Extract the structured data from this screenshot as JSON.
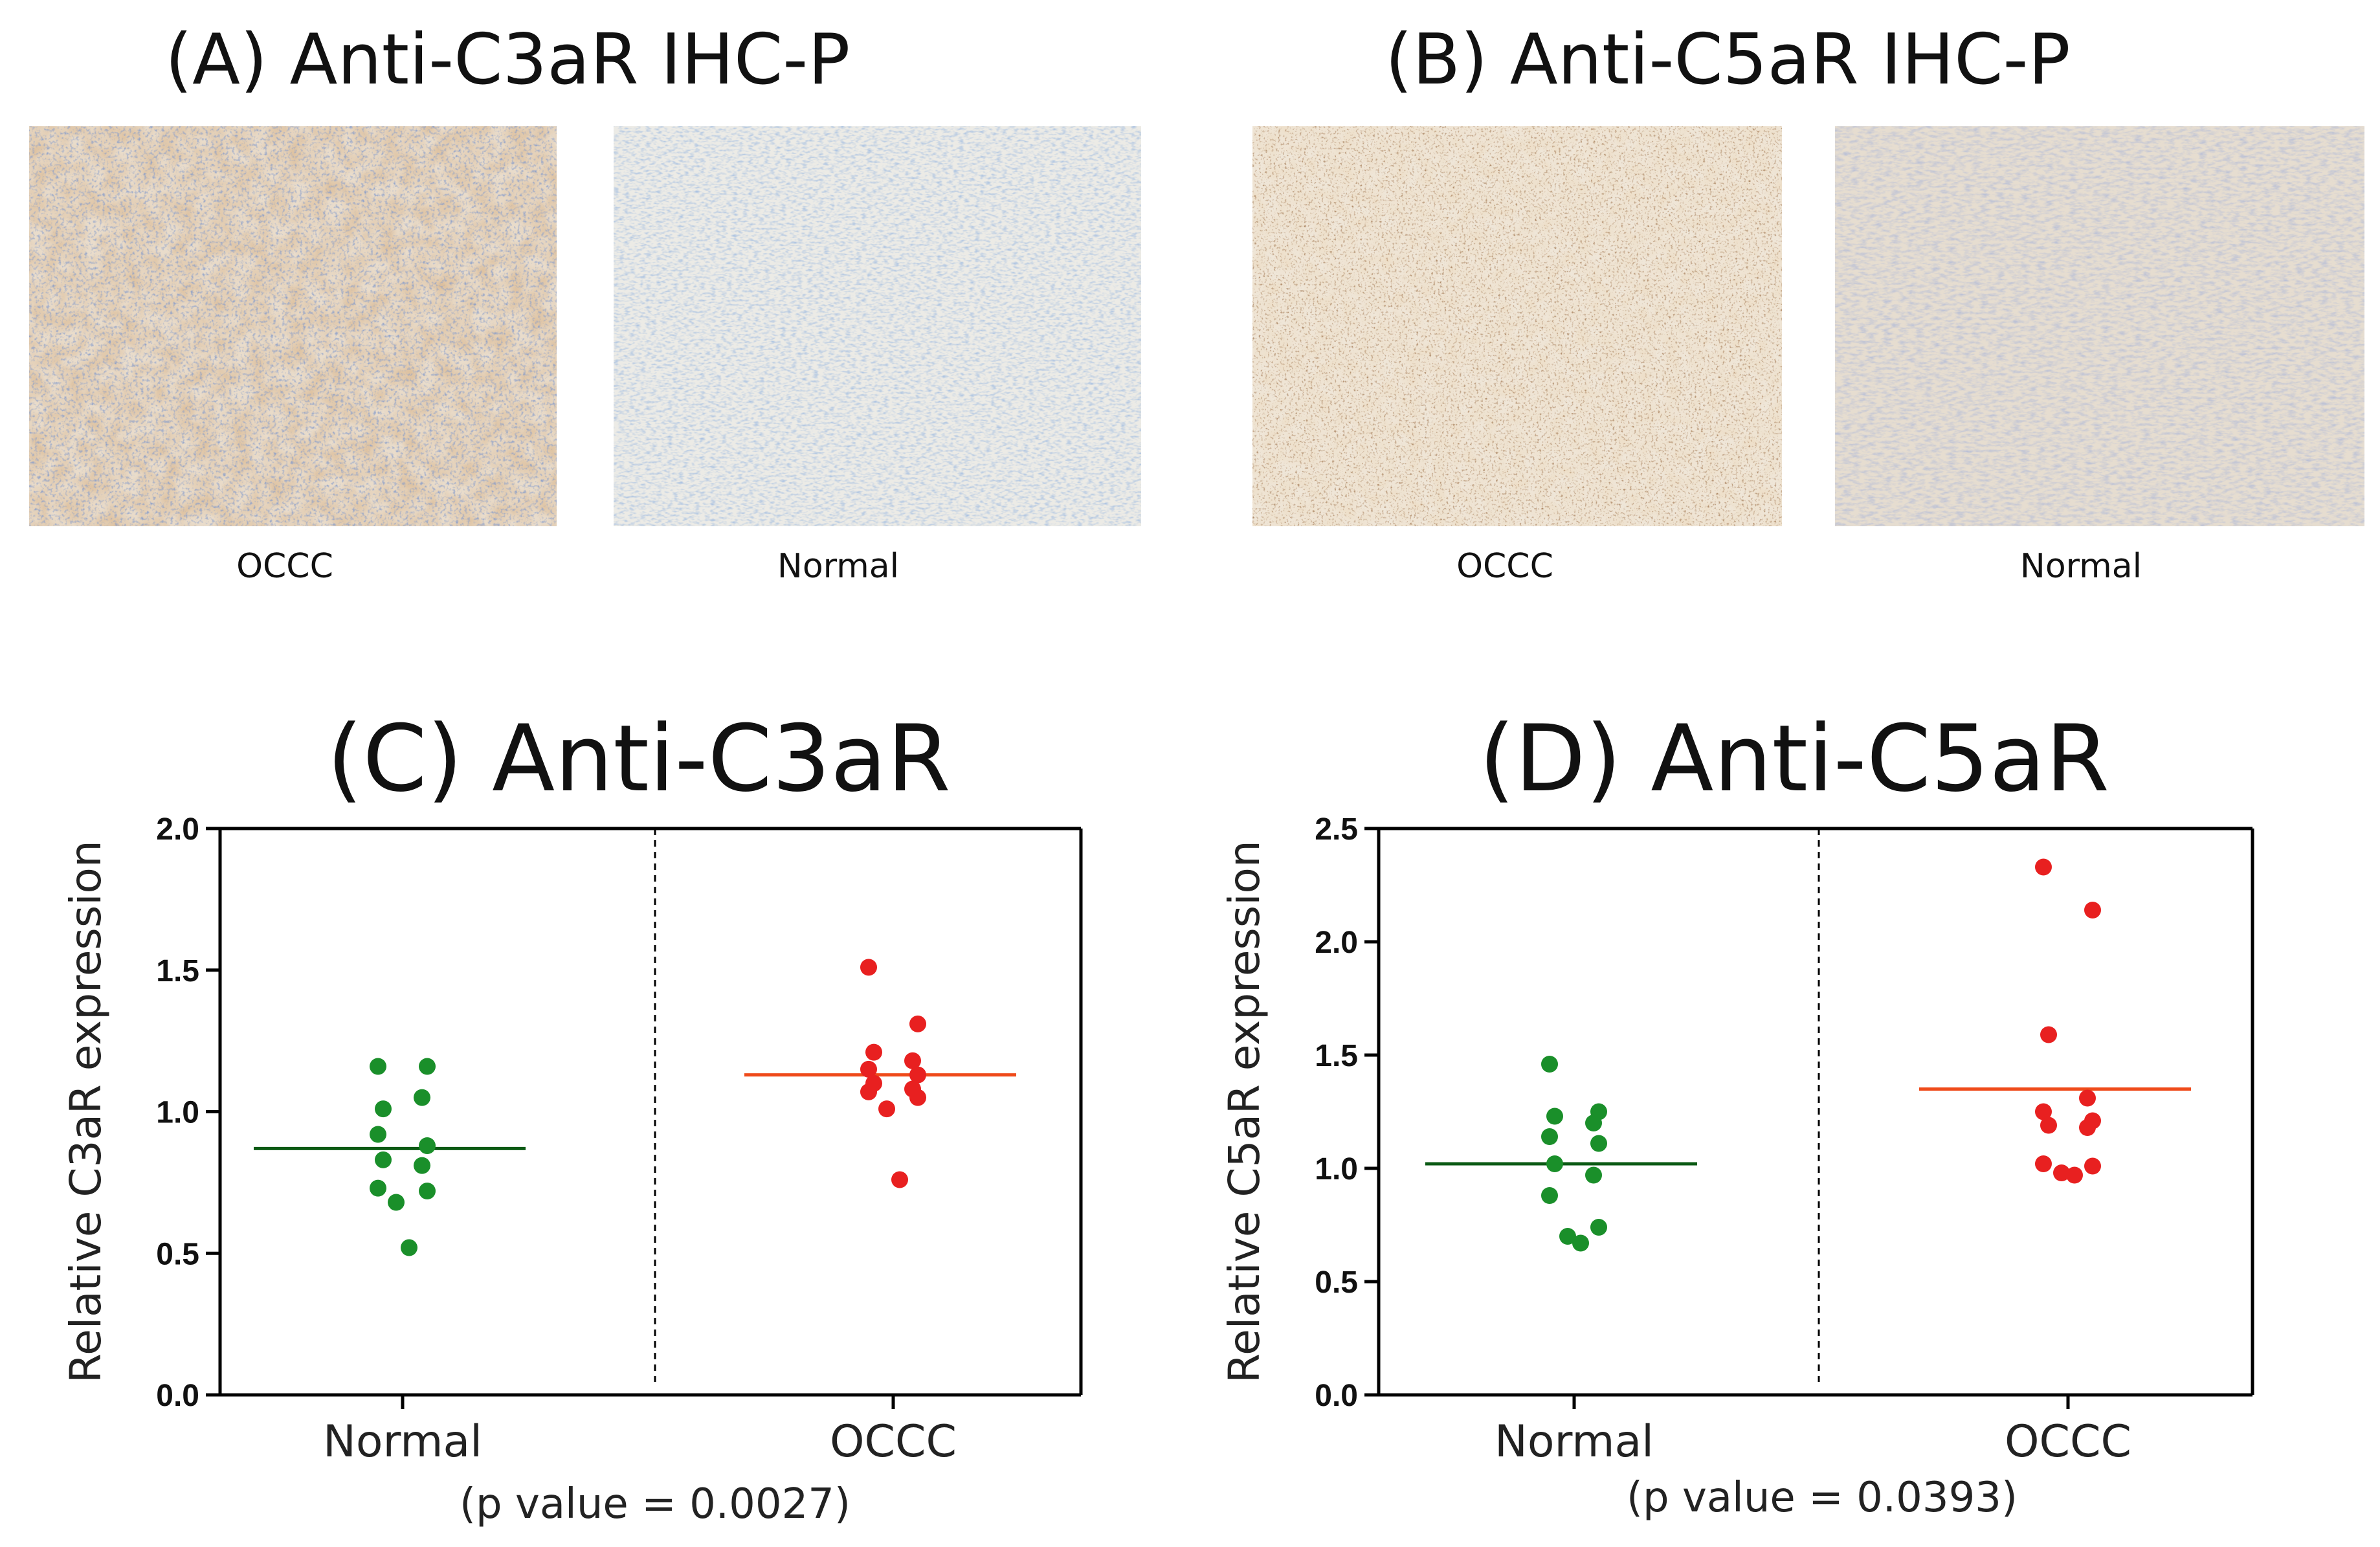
{
  "panels": {
    "a_title": "(A) Anti-C3aR IHC-P",
    "b_title": "(B) Anti-C5aR IHC-P",
    "a_caption_left": "OCCC",
    "a_caption_right": "Normal",
    "b_caption_left": "OCCC",
    "b_caption_right": "Normal"
  },
  "colors": {
    "normal_points": "#1a8f2a",
    "occc_points": "#e82020",
    "normal_mean": "#0b5a14",
    "occc_mean": "#ef4a1a",
    "ihc_brown": "#b9824a",
    "ihc_blue": "#4a6fa8"
  },
  "chart_data": [
    {
      "type": "scatter",
      "title": "(C) Anti-C3aR",
      "ylabel": "Relative  C3aR expression",
      "categories": [
        "Normal",
        "OCCC"
      ],
      "ylim": [
        0,
        2.0
      ],
      "yticks": [
        "0.0",
        "0.5",
        "1.0",
        "1.5",
        "2.0"
      ],
      "note": "(p value = 0.0027)",
      "series": [
        {
          "name": "Normal",
          "mean": 0.87,
          "values": [
            1.16,
            1.16,
            1.01,
            1.05,
            0.92,
            0.88,
            0.83,
            0.81,
            0.73,
            0.72,
            0.68,
            0.52
          ]
        },
        {
          "name": "OCCC",
          "mean": 1.13,
          "values": [
            1.51,
            1.31,
            1.21,
            1.18,
            1.15,
            1.13,
            1.1,
            1.08,
            1.07,
            1.05,
            1.01,
            0.76
          ]
        }
      ]
    },
    {
      "type": "scatter",
      "title": "(D) Anti-C5aR",
      "ylabel": "Relative  C5aR expression",
      "categories": [
        "Normal",
        "OCCC"
      ],
      "ylim": [
        0,
        2.5
      ],
      "yticks": [
        "0.0",
        "0.5",
        "1.0",
        "1.5",
        "2.0",
        "2.5"
      ],
      "note": "(p value = 0.0393)",
      "series": [
        {
          "name": "Normal",
          "mean": 1.02,
          "values": [
            1.46,
            1.25,
            1.23,
            1.2,
            1.14,
            1.11,
            1.02,
            0.97,
            0.88,
            0.74,
            0.7,
            0.67
          ]
        },
        {
          "name": "OCCC",
          "mean": 1.35,
          "values": [
            2.33,
            2.14,
            1.59,
            1.31,
            1.25,
            1.21,
            1.19,
            1.18,
            1.02,
            1.01,
            0.98,
            0.97
          ]
        }
      ]
    }
  ]
}
